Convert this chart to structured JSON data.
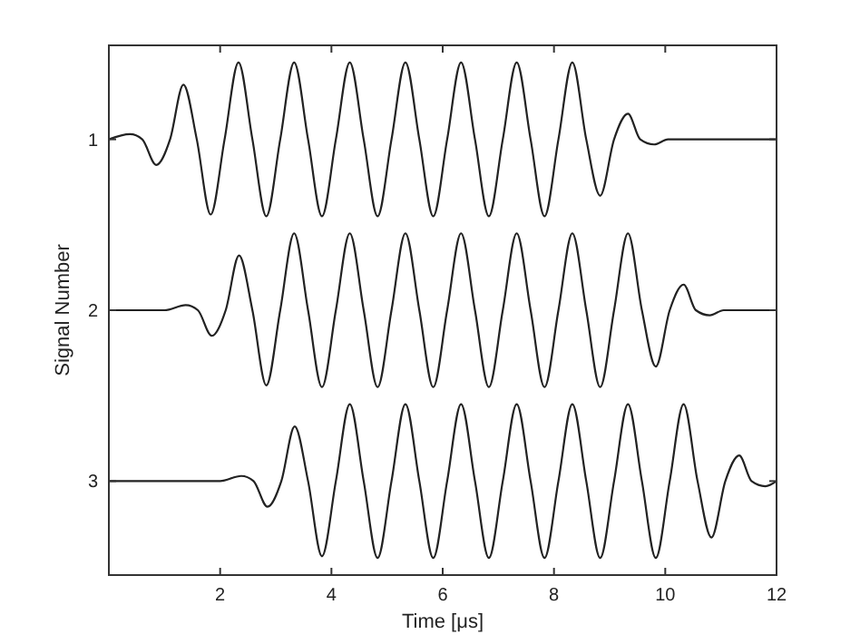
{
  "chart_data": {
    "type": "line",
    "xlabel": "Time [μs]",
    "ylabel": "Signal Number",
    "xlim": [
      0,
      12
    ],
    "xticks": [
      2,
      4,
      6,
      8,
      10,
      12
    ],
    "ylim": [
      3.55,
      0.45
    ],
    "yticks": [
      1,
      2,
      3
    ],
    "grid": false,
    "marker": "none",
    "line_style": "solid",
    "series": [
      {
        "color": "#222222",
        "x": [
          0,
          0.38,
          0.6,
          0.85,
          1.1,
          1.34,
          1.58,
          1.83,
          2.08,
          2.33,
          2.58,
          2.83,
          3.08,
          3.33,
          3.58,
          3.83,
          4.08,
          4.33,
          4.58,
          4.83,
          5.08,
          5.33,
          5.58,
          5.83,
          6.08,
          6.33,
          6.58,
          6.83,
          7.08,
          7.33,
          7.58,
          7.83,
          8.08,
          8.33,
          8.58,
          8.83,
          9.08,
          9.33,
          9.55,
          9.8,
          10.05,
          12
        ],
        "values": [
          1,
          0.97,
          1,
          1.15,
          1,
          0.68,
          1,
          1.44,
          1,
          0.55,
          1,
          1.45,
          1,
          0.55,
          1,
          1.45,
          1,
          0.55,
          1,
          1.45,
          1,
          0.55,
          1,
          1.45,
          1,
          0.55,
          1,
          1.45,
          1,
          0.55,
          1,
          1.45,
          1,
          0.55,
          1,
          1.33,
          1,
          0.85,
          1,
          1.03,
          1,
          1
        ]
      },
      {
        "color": "#222222",
        "x": [
          0,
          1,
          1.38,
          1.6,
          1.85,
          2.1,
          2.34,
          2.58,
          2.83,
          3.08,
          3.33,
          3.58,
          3.83,
          4.08,
          4.33,
          4.58,
          4.83,
          5.08,
          5.33,
          5.58,
          5.83,
          6.08,
          6.33,
          6.58,
          6.83,
          7.08,
          7.33,
          7.58,
          7.83,
          8.08,
          8.33,
          8.58,
          8.83,
          9.08,
          9.33,
          9.58,
          9.83,
          10.08,
          10.33,
          10.55,
          10.8,
          11.05,
          12
        ],
        "values": [
          2,
          2,
          1.97,
          2,
          2.15,
          2,
          1.68,
          2,
          2.44,
          2,
          1.55,
          2,
          2.45,
          2,
          1.55,
          2,
          2.45,
          2,
          1.55,
          2,
          2.45,
          2,
          1.55,
          2,
          2.45,
          2,
          1.55,
          2,
          2.45,
          2,
          1.55,
          2,
          2.45,
          2,
          1.55,
          2,
          2.33,
          2,
          1.85,
          2,
          2.03,
          2,
          2
        ]
      },
      {
        "color": "#222222",
        "x": [
          0,
          2,
          2.38,
          2.6,
          2.85,
          3.1,
          3.34,
          3.58,
          3.83,
          4.08,
          4.33,
          4.58,
          4.83,
          5.08,
          5.33,
          5.58,
          5.83,
          6.08,
          6.33,
          6.58,
          6.83,
          7.08,
          7.33,
          7.58,
          7.83,
          8.08,
          8.33,
          8.58,
          8.83,
          9.08,
          9.33,
          9.58,
          9.83,
          10.08,
          10.33,
          10.58,
          10.83,
          11.08,
          11.33,
          11.55,
          11.8,
          12
        ],
        "values": [
          3,
          3,
          2.97,
          3,
          3.15,
          3,
          2.68,
          3,
          3.44,
          3,
          2.55,
          3,
          3.45,
          3,
          2.55,
          3,
          3.45,
          3,
          2.55,
          3,
          3.45,
          3,
          2.55,
          3,
          3.45,
          3,
          2.55,
          3,
          3.45,
          3,
          2.55,
          3,
          3.45,
          3,
          2.55,
          3,
          3.33,
          3,
          2.85,
          3,
          3.03,
          3
        ]
      }
    ]
  }
}
